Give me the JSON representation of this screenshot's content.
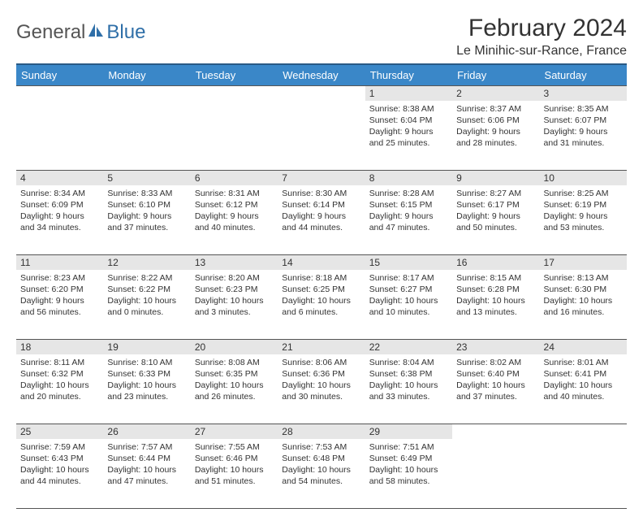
{
  "logo": {
    "text1": "General",
    "text2": "Blue",
    "color_gray": "#555555",
    "color_blue": "#2f6fa8"
  },
  "title": "February 2024",
  "location": "Le Minihic-sur-Rance, France",
  "header_bg": "#3a87c8",
  "header_border": "#2a5a85",
  "daynum_bg": "#e6e6e6",
  "cell_border": "#555555",
  "day_headers": [
    "Sunday",
    "Monday",
    "Tuesday",
    "Wednesday",
    "Thursday",
    "Friday",
    "Saturday"
  ],
  "weeks": [
    [
      {
        "n": "",
        "sr": "",
        "ss": "",
        "dl1": "",
        "dl2": ""
      },
      {
        "n": "",
        "sr": "",
        "ss": "",
        "dl1": "",
        "dl2": ""
      },
      {
        "n": "",
        "sr": "",
        "ss": "",
        "dl1": "",
        "dl2": ""
      },
      {
        "n": "",
        "sr": "",
        "ss": "",
        "dl1": "",
        "dl2": ""
      },
      {
        "n": "1",
        "sr": "Sunrise: 8:38 AM",
        "ss": "Sunset: 6:04 PM",
        "dl1": "Daylight: 9 hours",
        "dl2": "and 25 minutes."
      },
      {
        "n": "2",
        "sr": "Sunrise: 8:37 AM",
        "ss": "Sunset: 6:06 PM",
        "dl1": "Daylight: 9 hours",
        "dl2": "and 28 minutes."
      },
      {
        "n": "3",
        "sr": "Sunrise: 8:35 AM",
        "ss": "Sunset: 6:07 PM",
        "dl1": "Daylight: 9 hours",
        "dl2": "and 31 minutes."
      }
    ],
    [
      {
        "n": "4",
        "sr": "Sunrise: 8:34 AM",
        "ss": "Sunset: 6:09 PM",
        "dl1": "Daylight: 9 hours",
        "dl2": "and 34 minutes."
      },
      {
        "n": "5",
        "sr": "Sunrise: 8:33 AM",
        "ss": "Sunset: 6:10 PM",
        "dl1": "Daylight: 9 hours",
        "dl2": "and 37 minutes."
      },
      {
        "n": "6",
        "sr": "Sunrise: 8:31 AM",
        "ss": "Sunset: 6:12 PM",
        "dl1": "Daylight: 9 hours",
        "dl2": "and 40 minutes."
      },
      {
        "n": "7",
        "sr": "Sunrise: 8:30 AM",
        "ss": "Sunset: 6:14 PM",
        "dl1": "Daylight: 9 hours",
        "dl2": "and 44 minutes."
      },
      {
        "n": "8",
        "sr": "Sunrise: 8:28 AM",
        "ss": "Sunset: 6:15 PM",
        "dl1": "Daylight: 9 hours",
        "dl2": "and 47 minutes."
      },
      {
        "n": "9",
        "sr": "Sunrise: 8:27 AM",
        "ss": "Sunset: 6:17 PM",
        "dl1": "Daylight: 9 hours",
        "dl2": "and 50 minutes."
      },
      {
        "n": "10",
        "sr": "Sunrise: 8:25 AM",
        "ss": "Sunset: 6:19 PM",
        "dl1": "Daylight: 9 hours",
        "dl2": "and 53 minutes."
      }
    ],
    [
      {
        "n": "11",
        "sr": "Sunrise: 8:23 AM",
        "ss": "Sunset: 6:20 PM",
        "dl1": "Daylight: 9 hours",
        "dl2": "and 56 minutes."
      },
      {
        "n": "12",
        "sr": "Sunrise: 8:22 AM",
        "ss": "Sunset: 6:22 PM",
        "dl1": "Daylight: 10 hours",
        "dl2": "and 0 minutes."
      },
      {
        "n": "13",
        "sr": "Sunrise: 8:20 AM",
        "ss": "Sunset: 6:23 PM",
        "dl1": "Daylight: 10 hours",
        "dl2": "and 3 minutes."
      },
      {
        "n": "14",
        "sr": "Sunrise: 8:18 AM",
        "ss": "Sunset: 6:25 PM",
        "dl1": "Daylight: 10 hours",
        "dl2": "and 6 minutes."
      },
      {
        "n": "15",
        "sr": "Sunrise: 8:17 AM",
        "ss": "Sunset: 6:27 PM",
        "dl1": "Daylight: 10 hours",
        "dl2": "and 10 minutes."
      },
      {
        "n": "16",
        "sr": "Sunrise: 8:15 AM",
        "ss": "Sunset: 6:28 PM",
        "dl1": "Daylight: 10 hours",
        "dl2": "and 13 minutes."
      },
      {
        "n": "17",
        "sr": "Sunrise: 8:13 AM",
        "ss": "Sunset: 6:30 PM",
        "dl1": "Daylight: 10 hours",
        "dl2": "and 16 minutes."
      }
    ],
    [
      {
        "n": "18",
        "sr": "Sunrise: 8:11 AM",
        "ss": "Sunset: 6:32 PM",
        "dl1": "Daylight: 10 hours",
        "dl2": "and 20 minutes."
      },
      {
        "n": "19",
        "sr": "Sunrise: 8:10 AM",
        "ss": "Sunset: 6:33 PM",
        "dl1": "Daylight: 10 hours",
        "dl2": "and 23 minutes."
      },
      {
        "n": "20",
        "sr": "Sunrise: 8:08 AM",
        "ss": "Sunset: 6:35 PM",
        "dl1": "Daylight: 10 hours",
        "dl2": "and 26 minutes."
      },
      {
        "n": "21",
        "sr": "Sunrise: 8:06 AM",
        "ss": "Sunset: 6:36 PM",
        "dl1": "Daylight: 10 hours",
        "dl2": "and 30 minutes."
      },
      {
        "n": "22",
        "sr": "Sunrise: 8:04 AM",
        "ss": "Sunset: 6:38 PM",
        "dl1": "Daylight: 10 hours",
        "dl2": "and 33 minutes."
      },
      {
        "n": "23",
        "sr": "Sunrise: 8:02 AM",
        "ss": "Sunset: 6:40 PM",
        "dl1": "Daylight: 10 hours",
        "dl2": "and 37 minutes."
      },
      {
        "n": "24",
        "sr": "Sunrise: 8:01 AM",
        "ss": "Sunset: 6:41 PM",
        "dl1": "Daylight: 10 hours",
        "dl2": "and 40 minutes."
      }
    ],
    [
      {
        "n": "25",
        "sr": "Sunrise: 7:59 AM",
        "ss": "Sunset: 6:43 PM",
        "dl1": "Daylight: 10 hours",
        "dl2": "and 44 minutes."
      },
      {
        "n": "26",
        "sr": "Sunrise: 7:57 AM",
        "ss": "Sunset: 6:44 PM",
        "dl1": "Daylight: 10 hours",
        "dl2": "and 47 minutes."
      },
      {
        "n": "27",
        "sr": "Sunrise: 7:55 AM",
        "ss": "Sunset: 6:46 PM",
        "dl1": "Daylight: 10 hours",
        "dl2": "and 51 minutes."
      },
      {
        "n": "28",
        "sr": "Sunrise: 7:53 AM",
        "ss": "Sunset: 6:48 PM",
        "dl1": "Daylight: 10 hours",
        "dl2": "and 54 minutes."
      },
      {
        "n": "29",
        "sr": "Sunrise: 7:51 AM",
        "ss": "Sunset: 6:49 PM",
        "dl1": "Daylight: 10 hours",
        "dl2": "and 58 minutes."
      },
      {
        "n": "",
        "sr": "",
        "ss": "",
        "dl1": "",
        "dl2": ""
      },
      {
        "n": "",
        "sr": "",
        "ss": "",
        "dl1": "",
        "dl2": ""
      }
    ]
  ]
}
